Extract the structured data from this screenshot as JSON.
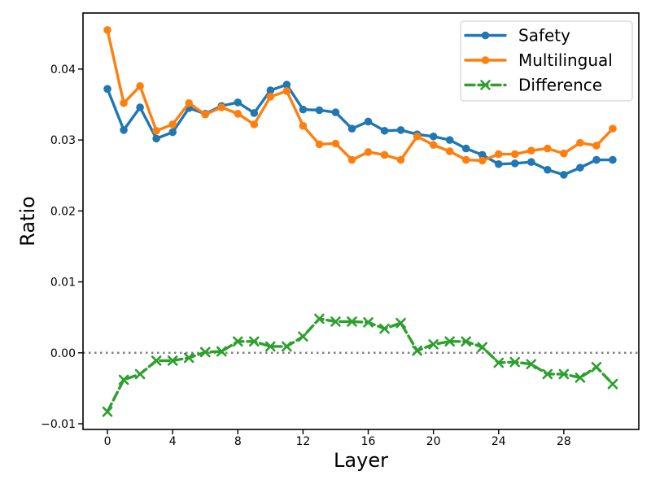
{
  "chart_data": {
    "type": "line",
    "title": "",
    "xlabel": "Layer",
    "ylabel": "Ratio",
    "x": [
      0,
      1,
      2,
      3,
      4,
      5,
      6,
      7,
      8,
      9,
      10,
      11,
      12,
      13,
      14,
      15,
      16,
      17,
      18,
      19,
      20,
      21,
      22,
      23,
      24,
      25,
      26,
      27,
      28,
      29,
      30,
      31
    ],
    "series": [
      {
        "name": "Safety",
        "color": "#1f77b4",
        "line_style": "solid",
        "marker": "circle",
        "values": [
          0.0372,
          0.0314,
          0.0346,
          0.0302,
          0.0311,
          0.0345,
          0.0337,
          0.0348,
          0.0353,
          0.0338,
          0.037,
          0.0378,
          0.0343,
          0.0342,
          0.0339,
          0.0316,
          0.0326,
          0.0313,
          0.0314,
          0.0308,
          0.0305,
          0.03,
          0.0288,
          0.0279,
          0.0266,
          0.0267,
          0.0269,
          0.0258,
          0.0251,
          0.0261,
          0.0272,
          0.0272
        ]
      },
      {
        "name": "Multilingual",
        "color": "#ff7f0e",
        "line_style": "solid",
        "marker": "circle",
        "values": [
          0.0455,
          0.0352,
          0.0376,
          0.0313,
          0.0322,
          0.0352,
          0.0336,
          0.0346,
          0.0337,
          0.0322,
          0.0361,
          0.0369,
          0.032,
          0.0294,
          0.0295,
          0.0272,
          0.0283,
          0.0279,
          0.0272,
          0.0305,
          0.0293,
          0.0284,
          0.0272,
          0.0271,
          0.028,
          0.028,
          0.0285,
          0.0288,
          0.0281,
          0.0296,
          0.0292,
          0.0316
        ]
      },
      {
        "name": "Difference",
        "color": "#2ca02c",
        "line_style": "dashed",
        "marker": "x",
        "values": [
          -0.0083,
          -0.0038,
          -0.003,
          -0.0011,
          -0.0011,
          -0.0007,
          0.0001,
          0.0002,
          0.0016,
          0.0016,
          0.0009,
          0.0009,
          0.0023,
          0.0048,
          0.0044,
          0.0044,
          0.0043,
          0.0034,
          0.0042,
          0.0003,
          0.0012,
          0.0016,
          0.0016,
          0.0008,
          -0.0014,
          -0.0013,
          -0.0016,
          -0.003,
          -0.003,
          -0.0035,
          -0.002,
          -0.0044
        ]
      }
    ],
    "x_ticks": [
      0,
      4,
      8,
      12,
      16,
      20,
      24,
      28
    ],
    "x_tick_labels": [
      "0",
      "4",
      "8",
      "12",
      "16",
      "20",
      "24",
      "28"
    ],
    "y_ticks": [
      -0.01,
      0.0,
      0.01,
      0.02,
      0.03,
      0.04
    ],
    "y_tick_labels": [
      "−0.01",
      "0.00",
      "0.01",
      "0.02",
      "0.03",
      "0.04"
    ],
    "xlim": [
      -1.5,
      32.6
    ],
    "ylim": [
      -0.0108,
      0.0479
    ],
    "grid": false,
    "legend_position": "upper right",
    "zero_line": {
      "y": 0.0,
      "color": "#808080",
      "style": "dotted"
    },
    "colors": {
      "background": "#ffffff",
      "spine": "#000000"
    }
  }
}
